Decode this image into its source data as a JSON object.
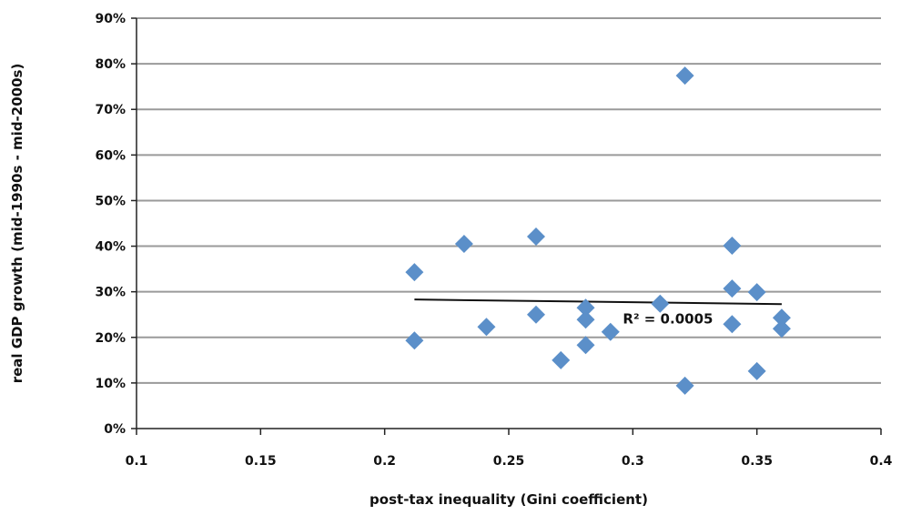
{
  "chart_data": {
    "type": "scatter",
    "title": "",
    "xlabel": "post-tax inequality (Gini coefficient)",
    "ylabel": "real GDP growth (mid-1990s - mid-2000s)",
    "xlim": [
      0.1,
      0.4
    ],
    "ylim": [
      0,
      0.9
    ],
    "x_ticks": [
      0.1,
      0.15,
      0.2,
      0.25,
      0.3,
      0.35,
      0.4
    ],
    "x_tick_labels": [
      "0.1",
      "0.15",
      "0.2",
      "0.25",
      "0.3",
      "0.35",
      "0.4"
    ],
    "y_ticks": [
      0,
      0.1,
      0.2,
      0.3,
      0.4,
      0.5,
      0.6,
      0.7,
      0.8,
      0.9
    ],
    "y_tick_labels": [
      "0%",
      "10%",
      "20%",
      "30%",
      "40%",
      "50%",
      "60%",
      "70%",
      "80%",
      "90%"
    ],
    "grid": true,
    "legend": "none",
    "marker": "diamond",
    "marker_color": "#5b8fc9",
    "points": [
      {
        "x": 0.212,
        "y": 0.343
      },
      {
        "x": 0.212,
        "y": 0.193
      },
      {
        "x": 0.232,
        "y": 0.405
      },
      {
        "x": 0.241,
        "y": 0.223
      },
      {
        "x": 0.261,
        "y": 0.421
      },
      {
        "x": 0.261,
        "y": 0.25
      },
      {
        "x": 0.271,
        "y": 0.15
      },
      {
        "x": 0.281,
        "y": 0.265
      },
      {
        "x": 0.281,
        "y": 0.239
      },
      {
        "x": 0.281,
        "y": 0.183
      },
      {
        "x": 0.291,
        "y": 0.212
      },
      {
        "x": 0.311,
        "y": 0.274
      },
      {
        "x": 0.321,
        "y": 0.774
      },
      {
        "x": 0.321,
        "y": 0.094
      },
      {
        "x": 0.34,
        "y": 0.401
      },
      {
        "x": 0.34,
        "y": 0.307
      },
      {
        "x": 0.34,
        "y": 0.229
      },
      {
        "x": 0.35,
        "y": 0.299
      },
      {
        "x": 0.35,
        "y": 0.126
      },
      {
        "x": 0.36,
        "y": 0.243
      },
      {
        "x": 0.36,
        "y": 0.219
      }
    ],
    "trendline": {
      "type": "linear",
      "x": [
        0.212,
        0.36
      ],
      "y": [
        0.283,
        0.273
      ],
      "color": "#111111",
      "annotation": "R² = 0.0005"
    }
  }
}
